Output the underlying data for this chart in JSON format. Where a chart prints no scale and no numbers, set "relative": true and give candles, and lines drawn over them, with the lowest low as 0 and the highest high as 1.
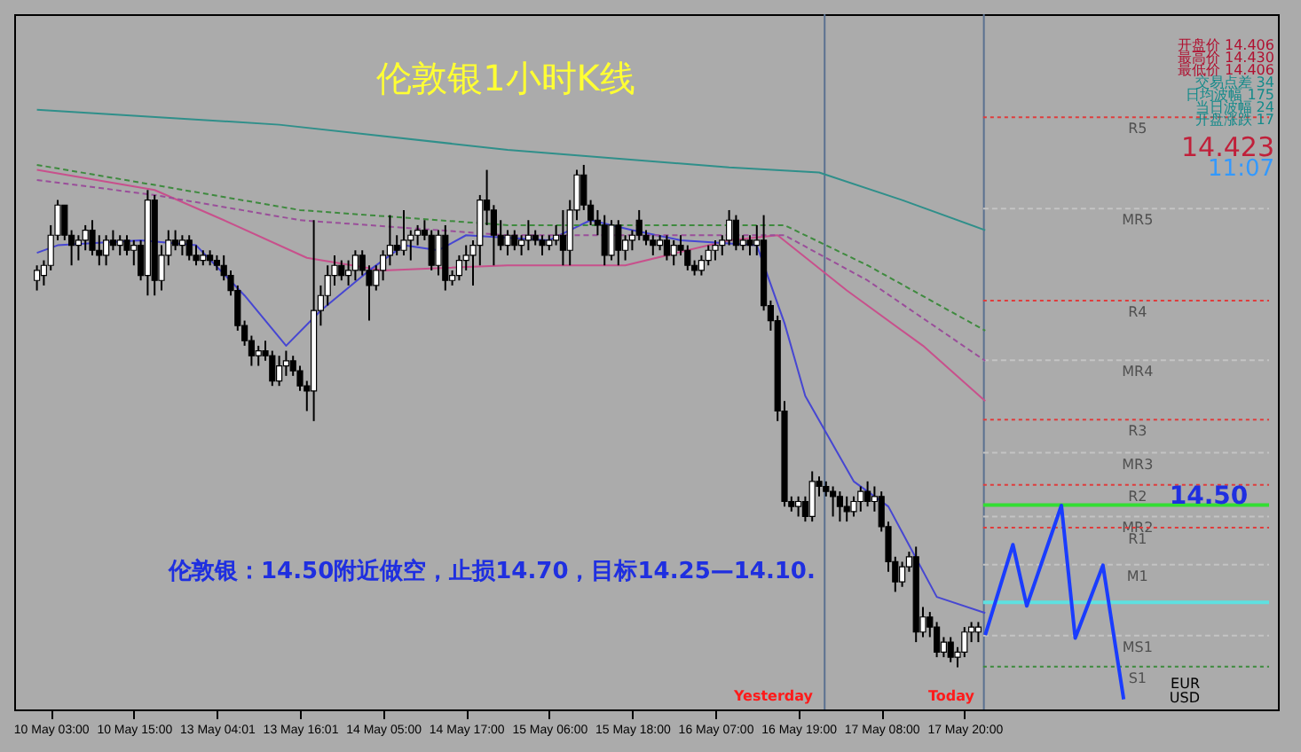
{
  "chart_data": {
    "type": "candlestick",
    "title": "伦敦银1小时K线",
    "relative": true,
    "categories": [
      null,
      null,
      "10 May 03:00",
      null,
      null,
      null,
      null,
      null,
      null,
      null,
      null,
      null,
      null,
      null,
      "10 May 15:00",
      null,
      null,
      null,
      null,
      null,
      null,
      null,
      null,
      null,
      null,
      null,
      "13 May 04:01",
      null,
      null,
      null,
      null,
      null,
      null,
      null,
      null,
      null,
      null,
      null,
      "13 May 16:01",
      null,
      null,
      null,
      null,
      null,
      null,
      null,
      null,
      null,
      null,
      null,
      "14 May 05:00",
      null,
      null,
      null,
      null,
      null,
      null,
      null,
      null,
      null,
      null,
      null,
      "14 May 17:00",
      null,
      null,
      null,
      null,
      null,
      null,
      null,
      null,
      null,
      null,
      null,
      "15 May 06:00",
      null,
      null,
      null,
      null,
      null,
      null,
      null,
      null,
      null,
      null,
      null,
      "15 May 18:00",
      null,
      null,
      null,
      null,
      null,
      null,
      null,
      null,
      null,
      null,
      null,
      "16 May 07:00",
      null,
      null,
      null,
      null,
      null,
      null,
      null,
      null,
      null,
      null,
      null,
      "16 May 19:00",
      null,
      null,
      null,
      null,
      null,
      null,
      null,
      null,
      null,
      null,
      null,
      "17 May 08:00",
      null,
      null,
      null,
      null,
      null,
      null,
      null,
      null,
      null,
      null,
      null,
      "17 May 20:00",
      null,
      null,
      null,
      null,
      null,
      null,
      null,
      null,
      null,
      null,
      null,
      null,
      null,
      null,
      null,
      null,
      null,
      null,
      null,
      null,
      null,
      null,
      null
    ],
    "ohlc": [
      [
        0.77,
        0.8,
        0.75,
        0.79
      ],
      [
        0.78,
        0.81,
        0.76,
        0.8
      ],
      [
        0.8,
        0.88,
        0.79,
        0.86
      ],
      [
        0.86,
        0.93,
        0.85,
        0.92
      ],
      [
        0.92,
        0.92,
        0.85,
        0.86
      ],
      [
        0.86,
        0.87,
        0.8,
        0.84
      ],
      [
        0.84,
        0.86,
        0.81,
        0.85
      ],
      [
        0.85,
        0.88,
        0.83,
        0.87
      ],
      [
        0.87,
        0.89,
        0.82,
        0.83
      ],
      [
        0.83,
        0.86,
        0.8,
        0.82
      ],
      [
        0.82,
        0.86,
        0.8,
        0.85
      ],
      [
        0.85,
        0.87,
        0.83,
        0.84
      ],
      [
        0.84,
        0.86,
        0.82,
        0.85
      ],
      [
        0.85,
        0.86,
        0.82,
        0.83
      ],
      [
        0.83,
        0.85,
        0.8,
        0.84
      ],
      [
        0.84,
        0.85,
        0.77,
        0.78
      ],
      [
        0.78,
        0.95,
        0.74,
        0.93
      ],
      [
        0.93,
        0.94,
        0.74,
        0.77
      ],
      [
        0.77,
        0.84,
        0.75,
        0.82
      ],
      [
        0.82,
        0.87,
        0.8,
        0.85
      ],
      [
        0.85,
        0.87,
        0.83,
        0.84
      ],
      [
        0.84,
        0.86,
        0.82,
        0.85
      ],
      [
        0.85,
        0.86,
        0.81,
        0.82
      ],
      [
        0.82,
        0.84,
        0.8,
        0.81
      ],
      [
        0.81,
        0.83,
        0.8,
        0.82
      ],
      [
        0.82,
        0.83,
        0.8,
        0.81
      ],
      [
        0.81,
        0.82,
        0.79,
        0.8
      ],
      [
        0.8,
        0.82,
        0.77,
        0.78
      ],
      [
        0.78,
        0.79,
        0.74,
        0.75
      ],
      [
        0.75,
        0.76,
        0.67,
        0.68
      ],
      [
        0.68,
        0.69,
        0.64,
        0.65
      ],
      [
        0.65,
        0.66,
        0.6,
        0.62
      ],
      [
        0.62,
        0.64,
        0.6,
        0.63
      ],
      [
        0.63,
        0.65,
        0.61,
        0.62
      ],
      [
        0.62,
        0.63,
        0.56,
        0.57
      ],
      [
        0.57,
        0.62,
        0.56,
        0.6
      ],
      [
        0.6,
        0.63,
        0.58,
        0.61
      ],
      [
        0.61,
        0.62,
        0.58,
        0.59
      ],
      [
        0.59,
        0.6,
        0.55,
        0.56
      ],
      [
        0.56,
        0.57,
        0.51,
        0.55
      ],
      [
        0.55,
        0.89,
        0.49,
        0.71
      ],
      [
        0.71,
        0.76,
        0.68,
        0.74
      ],
      [
        0.74,
        0.8,
        0.72,
        0.78
      ],
      [
        0.78,
        0.82,
        0.76,
        0.8
      ],
      [
        0.8,
        0.81,
        0.77,
        0.78
      ],
      [
        0.78,
        0.81,
        0.76,
        0.79
      ],
      [
        0.79,
        0.83,
        0.77,
        0.82
      ],
      [
        0.82,
        0.83,
        0.78,
        0.79
      ],
      [
        0.79,
        0.8,
        0.69,
        0.76
      ],
      [
        0.76,
        0.8,
        0.75,
        0.79
      ],
      [
        0.79,
        0.83,
        0.77,
        0.82
      ],
      [
        0.82,
        0.9,
        0.8,
        0.84
      ],
      [
        0.84,
        0.86,
        0.82,
        0.83
      ],
      [
        0.83,
        0.91,
        0.82,
        0.85
      ],
      [
        0.85,
        0.87,
        0.81,
        0.86
      ],
      [
        0.86,
        0.88,
        0.84,
        0.87
      ],
      [
        0.87,
        0.89,
        0.85,
        0.86
      ],
      [
        0.86,
        0.87,
        0.79,
        0.8
      ],
      [
        0.8,
        0.87,
        0.78,
        0.86
      ],
      [
        0.86,
        0.88,
        0.75,
        0.77
      ],
      [
        0.77,
        0.79,
        0.76,
        0.78
      ],
      [
        0.78,
        0.82,
        0.77,
        0.81
      ],
      [
        0.81,
        0.84,
        0.79,
        0.82
      ],
      [
        0.82,
        0.85,
        0.76,
        0.84
      ],
      [
        0.84,
        0.94,
        0.8,
        0.93
      ],
      [
        0.93,
        0.99,
        0.88,
        0.91
      ],
      [
        0.91,
        0.92,
        0.8,
        0.86
      ],
      [
        0.86,
        0.89,
        0.83,
        0.84
      ],
      [
        0.84,
        0.87,
        0.82,
        0.86
      ],
      [
        0.86,
        0.87,
        0.83,
        0.84
      ],
      [
        0.84,
        0.86,
        0.82,
        0.85
      ],
      [
        0.85,
        0.89,
        0.83,
        0.86
      ],
      [
        0.86,
        0.87,
        0.84,
        0.85
      ],
      [
        0.85,
        0.86,
        0.82,
        0.84
      ],
      [
        0.84,
        0.86,
        0.83,
        0.85
      ],
      [
        0.85,
        0.88,
        0.84,
        0.86
      ],
      [
        0.86,
        0.91,
        0.8,
        0.83
      ],
      [
        0.83,
        0.93,
        0.8,
        0.91
      ],
      [
        0.91,
        0.99,
        0.89,
        0.98
      ],
      [
        0.98,
        1.0,
        0.91,
        0.92
      ],
      [
        0.92,
        0.93,
        0.88,
        0.89
      ],
      [
        0.89,
        0.91,
        0.86,
        0.88
      ],
      [
        0.88,
        0.9,
        0.8,
        0.82
      ],
      [
        0.82,
        0.89,
        0.81,
        0.88
      ],
      [
        0.88,
        0.89,
        0.8,
        0.83
      ],
      [
        0.83,
        0.86,
        0.81,
        0.85
      ],
      [
        0.85,
        0.87,
        0.83,
        0.86
      ],
      [
        0.89,
        0.91,
        0.85,
        0.86
      ],
      [
        0.86,
        0.87,
        0.84,
        0.85
      ],
      [
        0.85,
        0.86,
        0.82,
        0.84
      ],
      [
        0.84,
        0.86,
        0.83,
        0.85
      ],
      [
        0.85,
        0.86,
        0.81,
        0.82
      ],
      [
        0.82,
        0.85,
        0.8,
        0.84
      ],
      [
        0.84,
        0.86,
        0.82,
        0.83
      ],
      [
        0.83,
        0.84,
        0.79,
        0.8
      ],
      [
        0.8,
        0.81,
        0.78,
        0.79
      ],
      [
        0.79,
        0.82,
        0.78,
        0.81
      ],
      [
        0.81,
        0.84,
        0.8,
        0.83
      ],
      [
        0.83,
        0.85,
        0.81,
        0.84
      ],
      [
        0.84,
        0.86,
        0.82,
        0.85
      ],
      [
        0.85,
        0.91,
        0.84,
        0.89
      ],
      [
        0.89,
        0.9,
        0.83,
        0.84
      ],
      [
        0.84,
        0.86,
        0.83,
        0.85
      ],
      [
        0.85,
        0.86,
        0.82,
        0.84
      ],
      [
        0.84,
        0.88,
        0.82,
        0.85
      ],
      [
        0.85,
        0.9,
        0.71,
        0.72
      ],
      [
        0.72,
        0.73,
        0.67,
        0.69
      ],
      [
        0.69,
        0.7,
        0.49,
        0.51
      ],
      [
        0.51,
        0.53,
        0.32,
        0.33
      ],
      [
        0.33,
        0.34,
        0.31,
        0.32
      ],
      [
        0.32,
        0.34,
        0.3,
        0.33
      ],
      [
        0.33,
        0.34,
        0.29,
        0.3
      ],
      [
        0.3,
        0.39,
        0.29,
        0.37
      ],
      [
        0.37,
        0.38,
        0.34,
        0.36
      ],
      [
        0.36,
        0.37,
        0.34,
        0.35
      ],
      [
        0.35,
        0.36,
        0.3,
        0.34
      ],
      [
        0.34,
        0.35,
        0.29,
        0.32
      ],
      [
        0.32,
        0.34,
        0.29,
        0.31
      ],
      [
        0.31,
        0.34,
        0.3,
        0.33
      ],
      [
        0.33,
        0.36,
        0.31,
        0.35
      ],
      [
        0.35,
        0.37,
        0.32,
        0.33
      ],
      [
        0.33,
        0.36,
        0.31,
        0.34
      ],
      [
        0.34,
        0.35,
        0.27,
        0.28
      ],
      [
        0.28,
        0.29,
        0.19,
        0.21
      ],
      [
        0.21,
        0.22,
        0.15,
        0.17
      ],
      [
        0.17,
        0.21,
        0.16,
        0.2
      ],
      [
        0.2,
        0.23,
        0.19,
        0.22
      ],
      [
        0.22,
        0.24,
        0.05,
        0.07
      ],
      [
        0.07,
        0.12,
        0.06,
        0.1
      ],
      [
        0.1,
        0.11,
        0.06,
        0.08
      ],
      [
        0.08,
        0.09,
        0.02,
        0.03
      ],
      [
        0.03,
        0.06,
        0.02,
        0.05
      ],
      [
        0.05,
        0.06,
        0.01,
        0.02
      ],
      [
        0.02,
        0.04,
        0.0,
        0.03
      ],
      [
        0.03,
        0.08,
        0.02,
        0.07
      ],
      [
        0.07,
        0.09,
        0.05,
        0.08
      ],
      [
        0.07,
        0.09,
        0.05,
        0.08
      ],
      null,
      null,
      null,
      null,
      null,
      null,
      null,
      null,
      null,
      null,
      null,
      null,
      null,
      null,
      null,
      null,
      null,
      null,
      null,
      null,
      null
    ],
    "series": [
      {
        "type": "line",
        "color": "#2f8f8a",
        "values": [
          1.11,
          null,
          null,
          null,
          null,
          null,
          null,
          null,
          null,
          null,
          null,
          null,
          null,
          null,
          null,
          null,
          null,
          null,
          null,
          null,
          null,
          null,
          null,
          null,
          null,
          null,
          null,
          null,
          null,
          null,
          null,
          null,
          null,
          null,
          null,
          1.08,
          null,
          null,
          null,
          null,
          null,
          null,
          null,
          null,
          null,
          null,
          null,
          null,
          null,
          null,
          null,
          null,
          null,
          null,
          null,
          null,
          null,
          null,
          null,
          null,
          null,
          null,
          null,
          null,
          null,
          null,
          null,
          null,
          1.03,
          null,
          null,
          null,
          null,
          null,
          null,
          null,
          null,
          null,
          null,
          null,
          null,
          null,
          null,
          null,
          null,
          null,
          null,
          null,
          null,
          null,
          null,
          null,
          null,
          null,
          null,
          null,
          null,
          null,
          null,
          null,
          0.995,
          null,
          null,
          null,
          null,
          null,
          null,
          null,
          null,
          null,
          null,
          null,
          null,
          0.985,
          null,
          null,
          null,
          null,
          null,
          null,
          null,
          null,
          null,
          null,
          null,
          0.93,
          null,
          null,
          null,
          null,
          null,
          null,
          null,
          null,
          null,
          null,
          null,
          0.87,
          null,
          null,
          null,
          null,
          null,
          null,
          null,
          null,
          null,
          null,
          null,
          null,
          null,
          null,
          null,
          null,
          null,
          null,
          null,
          null
        ]
      },
      {
        "type": "line",
        "color": "#3e8a3e",
        "line_style": "dashed",
        "values": [
          1.0,
          null,
          null,
          null,
          null,
          null,
          null,
          null,
          null,
          null,
          null,
          null,
          null,
          null,
          null,
          null,
          null,
          0.96,
          null,
          null,
          null,
          null,
          null,
          null,
          null,
          null,
          null,
          null,
          null,
          null,
          null,
          null,
          null,
          null,
          null,
          null,
          null,
          null,
          0.91,
          null,
          null,
          null,
          null,
          null,
          null,
          null,
          null,
          null,
          null,
          null,
          null,
          null,
          null,
          null,
          null,
          null,
          null,
          null,
          null,
          null,
          null,
          null,
          null,
          null,
          null,
          null,
          null,
          null,
          0.88,
          null,
          null,
          null,
          null,
          null,
          null,
          null,
          null,
          null,
          null,
          null,
          null,
          null,
          null,
          null,
          null,
          null,
          null,
          null,
          null,
          null,
          null,
          null,
          null,
          null,
          null,
          null,
          null,
          null,
          null,
          null,
          null,
          null,
          null,
          null,
          null,
          null,
          null,
          null,
          0.88,
          null,
          null,
          null,
          null,
          null,
          null,
          null,
          null,
          null,
          null,
          null,
          0.8,
          null,
          null,
          null,
          null,
          null,
          null,
          null,
          null,
          null,
          null,
          null,
          null,
          null,
          null,
          null,
          null,
          0.67,
          null,
          null,
          null,
          null,
          null,
          null,
          null,
          null,
          null,
          null,
          null,
          null,
          null,
          null,
          null,
          null,
          null,
          null,
          null,
          null
        ]
      },
      {
        "type": "line",
        "color": "#9a4e9a",
        "line_style": "dashed",
        "values": [
          0.97,
          null,
          null,
          null,
          null,
          null,
          null,
          null,
          null,
          null,
          null,
          null,
          null,
          null,
          null,
          null,
          null,
          0.94,
          null,
          null,
          null,
          null,
          null,
          null,
          null,
          null,
          null,
          null,
          null,
          null,
          null,
          null,
          null,
          null,
          null,
          null,
          null,
          null,
          0.89,
          null,
          null,
          null,
          null,
          null,
          null,
          null,
          null,
          null,
          null,
          null,
          null,
          null,
          null,
          null,
          null,
          null,
          null,
          null,
          null,
          null,
          null,
          null,
          null,
          null,
          null,
          null,
          null,
          null,
          0.86,
          null,
          null,
          null,
          null,
          null,
          null,
          null,
          null,
          null,
          null,
          null,
          null,
          null,
          null,
          null,
          null,
          null,
          null,
          null,
          null,
          null,
          null,
          null,
          null,
          null,
          null,
          null,
          null,
          null,
          null,
          null,
          null,
          null,
          null,
          null,
          null,
          null,
          null,
          null,
          0.86,
          null,
          null,
          null,
          null,
          null,
          null,
          null,
          null,
          null,
          null,
          null,
          0.77,
          null,
          null,
          null,
          null,
          null,
          null,
          null,
          null,
          null,
          null,
          null,
          null,
          null,
          null,
          null,
          null,
          0.61,
          null,
          null,
          null,
          null,
          null,
          null,
          null,
          null,
          null,
          null,
          null,
          null,
          null,
          null,
          null,
          null,
          null,
          null,
          null,
          null
        ]
      },
      {
        "type": "line",
        "color": "#c8508c",
        "values": [
          0.99,
          null,
          null,
          null,
          null,
          null,
          null,
          null,
          null,
          null,
          null,
          null,
          null,
          null,
          null,
          null,
          null,
          0.95,
          null,
          null,
          null,
          null,
          null,
          null,
          null,
          null,
          null,
          0.89,
          null,
          null,
          null,
          null,
          null,
          null,
          null,
          null,
          null,
          null,
          null,
          0.815,
          null,
          null,
          null,
          null,
          null,
          null,
          null,
          null,
          null,
          null,
          0.79,
          null,
          null,
          null,
          null,
          null,
          null,
          null,
          null,
          null,
          null,
          null,
          null,
          null,
          null,
          null,
          null,
          null,
          0.8,
          null,
          null,
          null,
          null,
          null,
          null,
          null,
          null,
          null,
          null,
          null,
          null,
          null,
          null,
          null,
          null,
          0.8,
          null,
          null,
          null,
          null,
          null,
          null,
          null,
          null,
          null,
          null,
          null,
          null,
          null,
          null,
          0.85,
          null,
          null,
          null,
          null,
          null,
          null,
          0.86,
          null,
          null,
          null,
          null,
          null,
          null,
          null,
          null,
          null,
          0.75,
          null,
          null,
          null,
          null,
          null,
          null,
          null,
          null,
          null,
          null,
          0.64,
          null,
          null,
          null,
          null,
          null,
          null,
          null,
          null,
          0.53,
          null,
          null,
          null,
          null,
          null,
          null,
          null,
          null,
          null,
          null,
          null,
          null,
          null,
          null,
          null,
          null,
          null,
          null,
          null,
          null
        ]
      },
      {
        "type": "line",
        "color": "#4646d2",
        "values": [
          0.825,
          null,
          null,
          0.84,
          null,
          null,
          null,
          null,
          null,
          null,
          null,
          null,
          null,
          null,
          null,
          0.85,
          null,
          null,
          null,
          null,
          null,
          null,
          null,
          0.84,
          null,
          null,
          null,
          null,
          null,
          null,
          0.74,
          null,
          null,
          null,
          null,
          null,
          0.64,
          null,
          null,
          null,
          null,
          0.71,
          null,
          null,
          null,
          null,
          null,
          null,
          0.79,
          null,
          null,
          null,
          null,
          0.84,
          null,
          null,
          null,
          null,
          0.83,
          null,
          null,
          null,
          0.86,
          null,
          null,
          null,
          null,
          null,
          null,
          null,
          null,
          null,
          null,
          null,
          0.85,
          null,
          null,
          null,
          null,
          null,
          0.89,
          null,
          null,
          null,
          null,
          null,
          0.87,
          null,
          null,
          null,
          null,
          null,
          null,
          0.85,
          null,
          null,
          null,
          null,
          null,
          null,
          null,
          null,
          null,
          null,
          0.84,
          null,
          null,
          null,
          0.685,
          null,
          null,
          0.54,
          null,
          null,
          null,
          null,
          null,
          null,
          0.37,
          null,
          null,
          null,
          null,
          0.32,
          null,
          null,
          null,
          null,
          null,
          null,
          0.14,
          null,
          null,
          null,
          null,
          null,
          null,
          0.108,
          null,
          null,
          null,
          null,
          null,
          null,
          null,
          null,
          null,
          null,
          null,
          null,
          null,
          null,
          null,
          null,
          null,
          null,
          null,
          null
        ]
      },
      {
        "type": "line",
        "color": "#1a3cff",
        "values": [
          null,
          null,
          null,
          null,
          null,
          null,
          null,
          null,
          null,
          null,
          null,
          null,
          null,
          null,
          null,
          null,
          null,
          null,
          null,
          null,
          null,
          null,
          null,
          null,
          null,
          null,
          null,
          null,
          null,
          null,
          null,
          null,
          null,
          null,
          null,
          null,
          null,
          null,
          null,
          null,
          null,
          null,
          null,
          null,
          null,
          null,
          null,
          null,
          null,
          null,
          null,
          null,
          null,
          null,
          null,
          null,
          null,
          null,
          null,
          null,
          null,
          null,
          null,
          null,
          null,
          null,
          null,
          null,
          null,
          null,
          null,
          null,
          null,
          null,
          null,
          null,
          null,
          null,
          null,
          null,
          null,
          null,
          null,
          null,
          null,
          null,
          null,
          null,
          null,
          null,
          null,
          null,
          null,
          null,
          null,
          null,
          null,
          null,
          null,
          null,
          null,
          null,
          null,
          null,
          null,
          null,
          null,
          null,
          null,
          null,
          null,
          null,
          null,
          null,
          null,
          null,
          null,
          null,
          null,
          null,
          null,
          null,
          null,
          null,
          null,
          null,
          null,
          null,
          null,
          null,
          null,
          null,
          null,
          null,
          null,
          null,
          null,
          0.064,
          null,
          null,
          null,
          0.244,
          null,
          0.122,
          null,
          null,
          null,
          null,
          0.322,
          null,
          0.058,
          null,
          null,
          null,
          0.203,
          null,
          null,
          -0.064
        ]
      }
    ],
    "ref_lines": [
      {
        "axis": "y",
        "value": 1.095,
        "label": "R5",
        "color": "#e03c3c",
        "line_style": "dotted"
      },
      {
        "axis": "y",
        "value": 0.913,
        "label": "MR5",
        "color": "#c4c4c4",
        "line_style": "dashed"
      },
      {
        "axis": "y",
        "value": 0.73,
        "label": "R4",
        "color": "#e03c3c",
        "line_style": "dotted"
      },
      {
        "axis": "y",
        "value": 0.611,
        "label": "MR4",
        "color": "#c4c4c4",
        "line_style": "dashed"
      },
      {
        "axis": "y",
        "value": 0.493,
        "label": "R3",
        "color": "#e03c3c",
        "line_style": "dotted"
      },
      {
        "axis": "y",
        "value": 0.427,
        "label": "MR3",
        "color": "#c4c4c4",
        "line_style": "dashed"
      },
      {
        "axis": "y",
        "value": 0.363,
        "label": "R2",
        "color": "#e03c3c",
        "line_style": "dotted"
      },
      {
        "axis": "y",
        "value": 0.323,
        "color": "#33dd33",
        "line_style": "solid"
      },
      {
        "axis": "y",
        "value": 0.3,
        "label": "MR2",
        "color": "#c4c4c4",
        "line_style": "dashed"
      },
      {
        "axis": "y",
        "value": 0.278,
        "label": "R1",
        "color": "#e03c3c",
        "line_style": "dotted"
      },
      {
        "axis": "y",
        "value": 0.204,
        "label": "M1",
        "color": "#c4c4c4",
        "line_style": "dashed"
      },
      {
        "axis": "y",
        "value": 0.129,
        "color": "#5ee0e0",
        "line_style": "solid"
      },
      {
        "axis": "y",
        "value": 0.063,
        "label": "MS1",
        "color": "#c4c4c4",
        "line_style": "dashed"
      },
      {
        "axis": "y",
        "value": 0.001,
        "label": "S1",
        "color": "#3c8a3c",
        "line_style": "dotted"
      }
    ],
    "annotations": [
      "伦敦银：14.50附近做空，止损14.70，目标14.25—14.10.",
      "开盘价 14.406",
      "最高价 14.430",
      "最低价 14.406",
      "交易点差 34",
      "日均波幅 175",
      "当日波幅 24",
      "开盘涨跌 17",
      "14.423",
      "11:07",
      "EUR",
      "USD",
      "Yesterday",
      "Today",
      "14.50"
    ]
  }
}
